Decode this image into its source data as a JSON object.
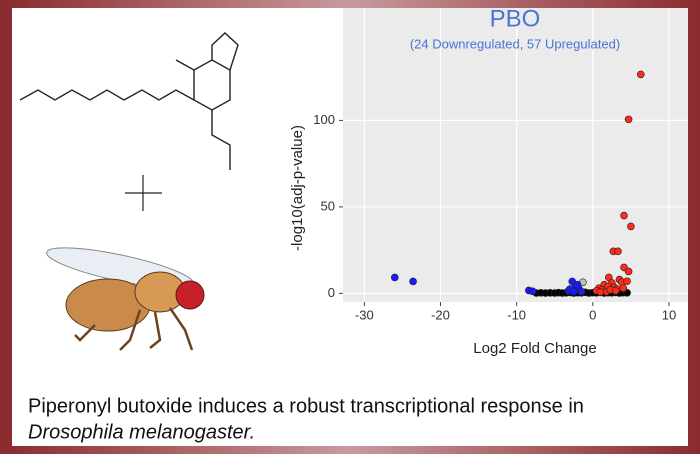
{
  "chart_data": {
    "type": "scatter",
    "title": "PBO",
    "subtitle": "(24 Downregulated, 57 Upregulated)",
    "x_label": "Log2 Fold Change",
    "y_label": "-log10(adj-p-value)",
    "xlim": [
      -32.8,
      12.5
    ],
    "ylim": [
      -5,
      165
    ],
    "xticks": [
      -30,
      -20,
      -10,
      0,
      10
    ],
    "yticks": [
      0,
      50,
      100
    ],
    "grid": true,
    "series": [
      {
        "color": "#000000",
        "x": [
          -7.4,
          -6.8,
          -6.2,
          -5.6,
          -5,
          -4.5,
          -4,
          -3.5,
          -3,
          -2.5,
          -2,
          -1.5,
          -1,
          -0.5,
          0,
          0.5,
          1,
          1.5,
          2,
          2.5,
          3,
          3.5,
          4,
          4.5
        ],
        "values": [
          0.2,
          0.3,
          0.2,
          0.3,
          0.2,
          0.4,
          0.2,
          0.3,
          0.5,
          0.2,
          0.4,
          0.3,
          0.6,
          0.2,
          0.4,
          0.3,
          0.5,
          0.2,
          0.4,
          0.3,
          0.5,
          0.2,
          0.4,
          0.3
        ]
      },
      {
        "color": "#bdbdbd",
        "x": [
          -1.3
        ],
        "values": [
          6.4
        ]
      },
      {
        "color": "#1a1aff",
        "x": [
          -26,
          -23.6,
          -8.4,
          -7.9,
          -2.7,
          -1.8,
          -2.3,
          -3.2,
          -2.0,
          -1.5,
          -3.0,
          -2.5
        ],
        "values": [
          9.2,
          6.9,
          1.7,
          1.2,
          6.9,
          2.5,
          3.5,
          1.5,
          5,
          1,
          2.5,
          1
        ]
      },
      {
        "color": "#ff2a1a",
        "x": [
          6.3,
          4.7,
          4.1,
          5.0,
          2.7,
          3.3,
          4.1,
          4.7,
          2.1,
          3.5,
          1.5,
          2.5,
          3.8,
          4.5,
          0.8,
          1.2,
          2.0,
          2.8,
          3.2,
          0.5,
          1.8,
          2.3,
          3.0,
          4.0,
          1.0
        ],
        "values": [
          126.6,
          100.6,
          45,
          38.7,
          24.3,
          24.3,
          15,
          12.7,
          9.2,
          8,
          5,
          6,
          6.5,
          7,
          3,
          2,
          4,
          3.5,
          2.5,
          1.5,
          1,
          2,
          1.5,
          3,
          0.8
        ]
      }
    ]
  },
  "caption": {
    "text": "Piperonyl butoxide induces a robust transcriptional response in",
    "species": "Drosophila melanogaster."
  }
}
